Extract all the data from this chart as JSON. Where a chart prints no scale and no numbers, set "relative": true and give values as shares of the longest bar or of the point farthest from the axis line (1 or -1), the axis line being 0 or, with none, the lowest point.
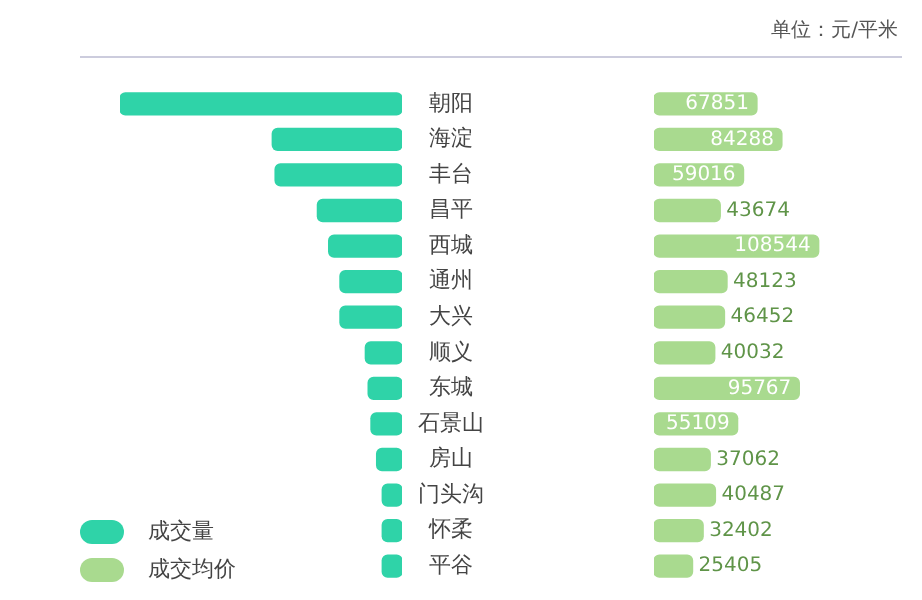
{
  "chart_data": [
    {
      "type": "bar",
      "orientation": "horizontal",
      "relative": true,
      "tick_labels": "y",
      "legend": "bottom left",
      "categories": [
        "朝阳",
        "海淀",
        "丰台",
        "昌平",
        "西城",
        "通州",
        "大兴",
        "顺义",
        "东城",
        "石景山",
        "房山",
        "门头沟",
        "怀柔",
        "平谷"
      ],
      "series": [
        {
          "name": "成交量",
          "color": "#2fd3a8",
          "values": [
            1,
            0.46,
            0.45,
            0.3,
            0.26,
            0.22,
            0.22,
            0.13,
            0.12,
            0.11,
            0.09,
            0.07,
            0.07,
            0.07
          ]
        }
      ]
    },
    {
      "type": "bar",
      "orientation": "horizontal",
      "tick_labels": false,
      "legend": "bottom left",
      "data_labels": true,
      "annotations": [
        "单位：元/平米"
      ],
      "categories": [
        null,
        null,
        null,
        null,
        null,
        null,
        null,
        null,
        null,
        null,
        null,
        null,
        null,
        null
      ],
      "series": [
        {
          "name": "成交均价",
          "color": "#a9da8f",
          "values": [
            67851,
            84288,
            59016,
            43674,
            108544,
            48123,
            46452,
            40032,
            95767,
            55109,
            37062,
            40487,
            32402,
            25405
          ]
        }
      ]
    }
  ]
}
